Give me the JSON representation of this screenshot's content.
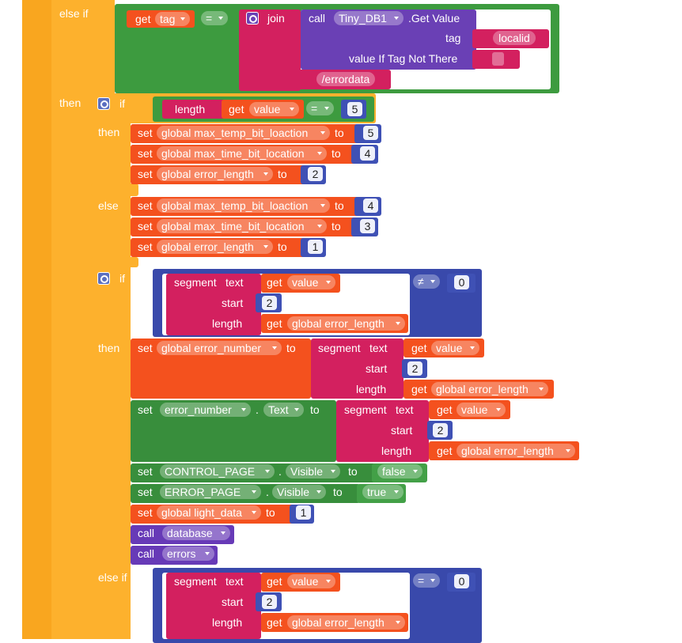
{
  "lines": [
    [
      "else if",
      "get",
      "tag",
      "=",
      "join",
      "call",
      "Tiny_DB1",
      ".Get Value"
    ],
    [
      "tag",
      "localid"
    ],
    [
      "value If Tag Not There"
    ],
    [
      "/errordata"
    ],
    [
      "then",
      "if",
      "length",
      "get",
      "value",
      "=",
      "5"
    ],
    [
      "then",
      "set",
      "global max_temp_bit_loaction",
      "to",
      "5"
    ],
    [
      "set",
      "global max_time_bit_location",
      "to",
      "4"
    ],
    [
      "set",
      "global error_length",
      "to",
      "2"
    ],
    [
      "else",
      "set",
      "global max_temp_bit_loaction",
      "to",
      "4"
    ],
    [
      "set",
      "global max_time_bit_location",
      "to",
      "3"
    ],
    [
      "set",
      "global error_length",
      "to",
      "1"
    ],
    [
      "if",
      "segment",
      "text",
      "get",
      "value",
      "≠",
      "0"
    ],
    [
      "start",
      "2"
    ],
    [
      "length",
      "get",
      "global error_length"
    ],
    [
      "then",
      "set",
      "global error_number",
      "to",
      "segment",
      "text",
      "get",
      "value"
    ],
    [
      "start",
      "2"
    ],
    [
      "length",
      "get",
      "global error_length"
    ],
    [
      "set",
      "error_number",
      ".",
      "Text",
      "to",
      "segment",
      "text",
      "get",
      "value"
    ],
    [
      "start",
      "2"
    ],
    [
      "length",
      "get",
      "global error_length"
    ],
    [
      "set",
      "CONTROL_PAGE",
      ".",
      "Visible",
      "to",
      "false"
    ],
    [
      "set",
      "ERROR_PAGE",
      ".",
      "Visible",
      "to",
      "true"
    ],
    [
      "set",
      "global light_data",
      "to",
      "1"
    ],
    [
      "call",
      "database"
    ],
    [
      "call",
      "errors"
    ],
    [
      "else if",
      "segment",
      "text",
      "get",
      "value",
      "=",
      "0"
    ],
    [
      "start",
      "2"
    ],
    [
      "length",
      "get",
      "global error_length"
    ]
  ]
}
